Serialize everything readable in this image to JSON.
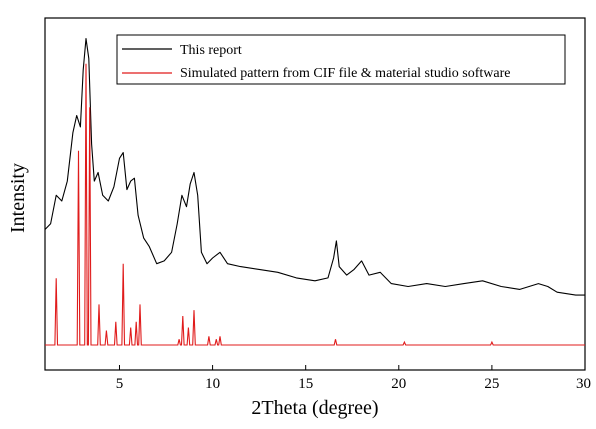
{
  "chart_data": {
    "type": "line",
    "xlabel": "2Theta (degree)",
    "ylabel": "Intensity",
    "xlim": [
      1,
      30
    ],
    "x_ticks": [
      5,
      10,
      15,
      20,
      25,
      30
    ],
    "yticks_visible": false,
    "grid": false,
    "legend_position": "top-right",
    "series": [
      {
        "name": "This report",
        "color": "#000000",
        "points": [
          [
            1.0,
            0.3
          ],
          [
            1.3,
            0.32
          ],
          [
            1.6,
            0.42
          ],
          [
            1.9,
            0.4
          ],
          [
            2.2,
            0.47
          ],
          [
            2.5,
            0.64
          ],
          [
            2.7,
            0.7
          ],
          [
            2.9,
            0.66
          ],
          [
            3.05,
            0.86
          ],
          [
            3.2,
            0.97
          ],
          [
            3.35,
            0.9
          ],
          [
            3.5,
            0.6
          ],
          [
            3.65,
            0.47
          ],
          [
            3.85,
            0.5
          ],
          [
            4.1,
            0.42
          ],
          [
            4.4,
            0.4
          ],
          [
            4.7,
            0.45
          ],
          [
            5.0,
            0.55
          ],
          [
            5.2,
            0.57
          ],
          [
            5.4,
            0.44
          ],
          [
            5.6,
            0.47
          ],
          [
            5.8,
            0.48
          ],
          [
            6.0,
            0.35
          ],
          [
            6.3,
            0.27
          ],
          [
            6.6,
            0.24
          ],
          [
            7.0,
            0.18
          ],
          [
            7.4,
            0.19
          ],
          [
            7.8,
            0.22
          ],
          [
            8.1,
            0.32
          ],
          [
            8.35,
            0.42
          ],
          [
            8.6,
            0.38
          ],
          [
            8.8,
            0.46
          ],
          [
            9.0,
            0.5
          ],
          [
            9.2,
            0.42
          ],
          [
            9.4,
            0.22
          ],
          [
            9.7,
            0.18
          ],
          [
            10.0,
            0.2
          ],
          [
            10.4,
            0.22
          ],
          [
            10.8,
            0.18
          ],
          [
            11.5,
            0.17
          ],
          [
            12.5,
            0.16
          ],
          [
            13.5,
            0.15
          ],
          [
            14.5,
            0.13
          ],
          [
            15.5,
            0.12
          ],
          [
            16.2,
            0.13
          ],
          [
            16.5,
            0.2
          ],
          [
            16.65,
            0.26
          ],
          [
            16.8,
            0.17
          ],
          [
            17.2,
            0.14
          ],
          [
            17.6,
            0.16
          ],
          [
            18.0,
            0.19
          ],
          [
            18.4,
            0.14
          ],
          [
            19.0,
            0.15
          ],
          [
            19.6,
            0.11
          ],
          [
            20.5,
            0.1
          ],
          [
            21.5,
            0.11
          ],
          [
            22.5,
            0.1
          ],
          [
            23.5,
            0.11
          ],
          [
            24.5,
            0.12
          ],
          [
            25.5,
            0.1
          ],
          [
            26.5,
            0.09
          ],
          [
            27.5,
            0.11
          ],
          [
            28.0,
            0.1
          ],
          [
            28.5,
            0.08
          ],
          [
            29.5,
            0.07
          ],
          [
            30.0,
            0.07
          ]
        ]
      },
      {
        "name": "Simulated pattern from CIF file & material studio software",
        "color": "#e01b1b",
        "baseline": 0.0,
        "peaks": [
          [
            1.6,
            0.23
          ],
          [
            2.8,
            0.67
          ],
          [
            3.2,
            0.97
          ],
          [
            3.4,
            0.82
          ],
          [
            3.9,
            0.14
          ],
          [
            4.3,
            0.05
          ],
          [
            4.8,
            0.08
          ],
          [
            5.2,
            0.28
          ],
          [
            5.6,
            0.06
          ],
          [
            5.9,
            0.08
          ],
          [
            6.1,
            0.14
          ],
          [
            8.2,
            0.02
          ],
          [
            8.4,
            0.1
          ],
          [
            8.7,
            0.06
          ],
          [
            9.0,
            0.12
          ],
          [
            9.8,
            0.03
          ],
          [
            10.2,
            0.02
          ],
          [
            10.4,
            0.03
          ],
          [
            16.6,
            0.02
          ],
          [
            20.3,
            0.01
          ],
          [
            25.0,
            0.01
          ]
        ]
      }
    ]
  }
}
